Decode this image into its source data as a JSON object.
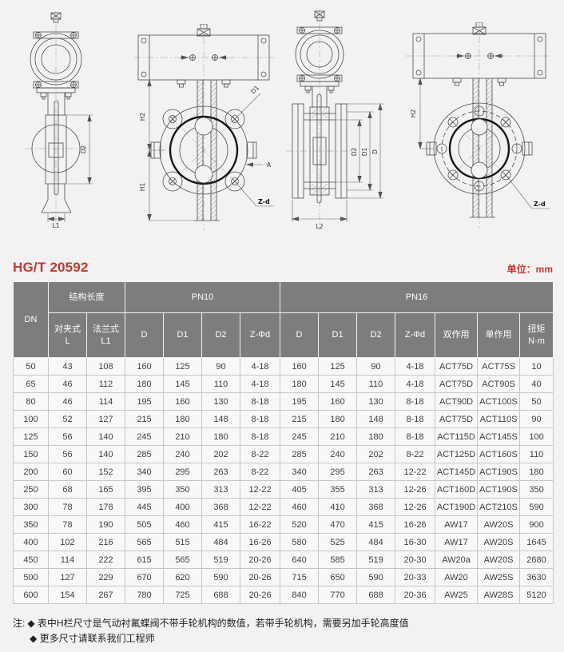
{
  "page": {
    "title": "HG/T 20592",
    "unit_label": "单位：mm",
    "accent_red": "#c23a30",
    "header_gray": "#7d7d7d",
    "background": "#f3f1f1"
  },
  "drawings": {
    "wafer_side": {
      "labels": {
        "l1": "L1",
        "d2": "D2"
      }
    },
    "wafer_front": {
      "labels": {
        "h2": "H2",
        "h1": "H1",
        "d1": "D1",
        "a": "A",
        "zd": "Z-d"
      }
    },
    "flange_side": {
      "labels": {
        "l2": "L2",
        "d2": "D2",
        "d1": "D1",
        "d": "D"
      }
    },
    "flange_front": {
      "labels": {
        "h2": "H2",
        "zd": "Z-d"
      }
    }
  },
  "table": {
    "header": {
      "dn": "DN",
      "length_group": "结构长度",
      "pn10_group": "PN10",
      "pn16_group": "PN16",
      "sub": [
        "对夹式\nL",
        "法兰式\nL1",
        "D",
        "D1",
        "D2",
        "Z-Φd",
        "D",
        "D1",
        "D2",
        "Z-Φd",
        "双作用",
        "单作用",
        "扭矩\nN·m"
      ]
    },
    "rows": [
      [
        "50",
        "43",
        "108",
        "160",
        "125",
        "90",
        "4-18",
        "160",
        "125",
        "90",
        "4-18",
        "ACT75D",
        "ACT75S",
        "10"
      ],
      [
        "65",
        "46",
        "112",
        "180",
        "145",
        "110",
        "4-18",
        "180",
        "145",
        "110",
        "4-18",
        "ACT75D",
        "ACT90S",
        "40"
      ],
      [
        "80",
        "46",
        "114",
        "195",
        "160",
        "130",
        "8-18",
        "195",
        "160",
        "130",
        "8-18",
        "ACT90D",
        "ACT100S",
        "50"
      ],
      [
        "100",
        "52",
        "127",
        "215",
        "180",
        "148",
        "8-18",
        "215",
        "180",
        "148",
        "8-18",
        "ACT75D",
        "ACT110S",
        "90"
      ],
      [
        "125",
        "56",
        "140",
        "245",
        "210",
        "180",
        "8-18",
        "245",
        "210",
        "180",
        "8-18",
        "ACT115D",
        "ACT145S",
        "100"
      ],
      [
        "150",
        "56",
        "140",
        "285",
        "240",
        "202",
        "8-22",
        "285",
        "240",
        "202",
        "8-22",
        "ACT125D",
        "ACT160S",
        "110"
      ],
      [
        "200",
        "60",
        "152",
        "340",
        "295",
        "263",
        "8-22",
        "340",
        "295",
        "263",
        "12-22",
        "ACT145D",
        "ACT190S",
        "180"
      ],
      [
        "250",
        "68",
        "165",
        "395",
        "350",
        "313",
        "12-22",
        "405",
        "355",
        "313",
        "12-26",
        "ACT160D",
        "ACT190S",
        "350"
      ],
      [
        "300",
        "78",
        "178",
        "445",
        "400",
        "368",
        "12-22",
        "460",
        "410",
        "368",
        "12-26",
        "ACT190D",
        "ACT210S",
        "590"
      ],
      [
        "350",
        "78",
        "190",
        "505",
        "460",
        "415",
        "16-22",
        "520",
        "470",
        "415",
        "16-26",
        "AW17",
        "AW20S",
        "900"
      ],
      [
        "400",
        "102",
        "216",
        "565",
        "515",
        "484",
        "16-26",
        "580",
        "525",
        "484",
        "16-30",
        "AW17",
        "AW20S",
        "1645"
      ],
      [
        "450",
        "114",
        "222",
        "615",
        "565",
        "519",
        "20-26",
        "640",
        "585",
        "519",
        "20-30",
        "AW20a",
        "AW20S",
        "2680"
      ],
      [
        "500",
        "127",
        "229",
        "670",
        "620",
        "590",
        "20-26",
        "715",
        "650",
        "590",
        "20-33",
        "AW20",
        "AW25S",
        "3630"
      ],
      [
        "600",
        "154",
        "267",
        "780",
        "725",
        "688",
        "20-26",
        "840",
        "770",
        "688",
        "20-36",
        "AW25",
        "AW28S",
        "5120"
      ]
    ]
  },
  "notes": {
    "prefix": "注:",
    "items": [
      "◆ 表中H栏尺寸是气动衬氟蝶阀不带手轮机构的数值，若带手轮机构，需要另加手轮高度值",
      "◆ 更多尺寸请联系我们工程师"
    ]
  }
}
